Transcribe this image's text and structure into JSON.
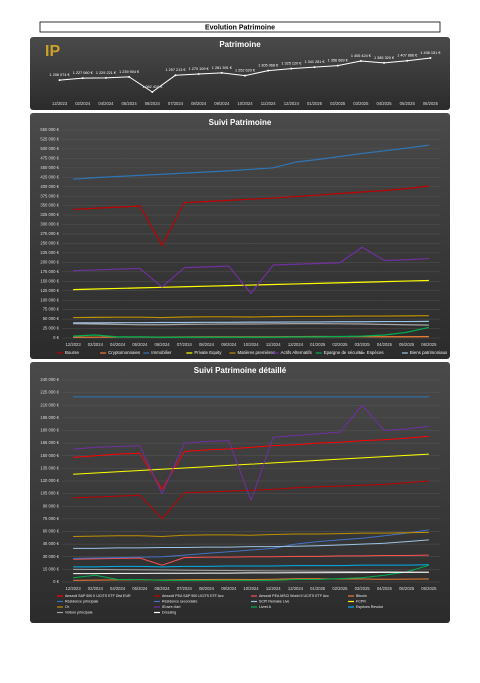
{
  "header": {
    "title": "Evolution Patrimoine",
    "logo": "IP"
  },
  "chart_data": [
    {
      "type": "line",
      "title": "Patrimoine",
      "categories": [
        "12/2023",
        "02/2024",
        "04/2024",
        "05/2024",
        "06/2024",
        "07/2024",
        "08/2024",
        "09/2024",
        "10/2024",
        "11/2024",
        "12/2024",
        "01/2025",
        "02/2025",
        "03/2025",
        "04/2025",
        "05/2025",
        "06/2025"
      ],
      "values": [
        1206074,
        1227060,
        1229221,
        1239904,
        1082410,
        1257213,
        1270109,
        1281391,
        1252620,
        1305068,
        1325120,
        1341281,
        1356689,
        1405424,
        1385320,
        1407866,
        1436151
      ],
      "value_labels": [
        "1 206 074 €",
        "1 227 060 €",
        "1 229 221 €",
        "1 239 904 €",
        "1 082 410 €",
        "1 257 213 €",
        "1 270 109 €",
        "1 281 391 €",
        "1 252 620 €",
        "1 305 068 €",
        "1 325 120 €",
        "1 341 281 €",
        "1 356 689 €",
        "1 405 424 €",
        "1 385 320 €",
        "1 407 866 €",
        "1 436 151 €"
      ],
      "color": "#ffffff"
    },
    {
      "type": "line",
      "title": "Suivi Patrimoine",
      "categories": [
        "12/2023",
        "02/2024",
        "04/2024",
        "05/2024",
        "06/2024",
        "07/2024",
        "08/2024",
        "09/2024",
        "10/2024",
        "11/2024",
        "12/2024",
        "01/2025",
        "02/2025",
        "03/2025",
        "04/2025",
        "05/2025",
        "06/2025"
      ],
      "ylim": [
        0,
        550000
      ],
      "yticks": [
        {
          "value": 0,
          "label": "0 €"
        },
        {
          "value": 25000,
          "label": "25 000 €"
        },
        {
          "value": 50000,
          "label": "50 000 €"
        },
        {
          "value": 75000,
          "label": "75 000 €"
        },
        {
          "value": 100000,
          "label": "100 000 €"
        },
        {
          "value": 125000,
          "label": "125 000 €"
        },
        {
          "value": 150000,
          "label": "150 000 €"
        },
        {
          "value": 175000,
          "label": "175 000 €"
        },
        {
          "value": 200000,
          "label": "200 000 €"
        },
        {
          "value": 225000,
          "label": "225 000 €"
        },
        {
          "value": 250000,
          "label": "250 000 €"
        },
        {
          "value": 275000,
          "label": "275 000 €"
        },
        {
          "value": 300000,
          "label": "300 000 €"
        },
        {
          "value": 325000,
          "label": "325 000 €"
        },
        {
          "value": 350000,
          "label": "350 000 €"
        },
        {
          "value": 375000,
          "label": "375 000 €"
        },
        {
          "value": 400000,
          "label": "400 000 €"
        },
        {
          "value": 425000,
          "label": "425 000 €"
        },
        {
          "value": 450000,
          "label": "450 000 €"
        },
        {
          "value": 475000,
          "label": "475 000 €"
        },
        {
          "value": 500000,
          "label": "500 000 €"
        },
        {
          "value": 525000,
          "label": "525 000 €"
        },
        {
          "value": 550000,
          "label": "550 000 €"
        }
      ],
      "grid": true,
      "series": [
        {
          "name": "Bourse",
          "color": "#c00000",
          "values": [
            340000,
            343000,
            346000,
            349000,
            245000,
            358000,
            361000,
            364000,
            367000,
            370000,
            374000,
            378000,
            382000,
            386000,
            390000,
            395000,
            402000
          ]
        },
        {
          "name": "Cryptomonnaies",
          "color": "#ed7d31",
          "values": [
            2000,
            2200,
            2500,
            2600,
            2400,
            2800,
            3000,
            3100,
            3000,
            3200,
            3800,
            3900,
            3600,
            3500,
            3300,
            3400,
            3600
          ]
        },
        {
          "name": "Immobilier",
          "color": "#2e75b6",
          "values": [
            420000,
            424000,
            427000,
            430000,
            433000,
            436000,
            439000,
            442000,
            446000,
            450000,
            465000,
            472000,
            480000,
            488000,
            495000,
            502000,
            510000
          ]
        },
        {
          "name": "Private Equity",
          "color": "#ffff00",
          "values": [
            128000,
            129500,
            131000,
            132500,
            134000,
            135500,
            137000,
            138500,
            140000,
            141500,
            143000,
            144500,
            146000,
            147500,
            149000,
            150500,
            152000
          ]
        },
        {
          "name": "Matières premières",
          "color": "#bf9000",
          "values": [
            54000,
            54500,
            55000,
            55000,
            54000,
            55500,
            56000,
            56000,
            55500,
            56500,
            57000,
            57000,
            57500,
            58000,
            58000,
            58500,
            59000
          ]
        },
        {
          "name": "Actifs Alternatifs",
          "color": "#7030a0",
          "values": [
            178000,
            180000,
            182000,
            184000,
            135000,
            186000,
            188000,
            190000,
            118000,
            193000,
            195000,
            197000,
            199000,
            240000,
            205000,
            207000,
            210000
          ]
        },
        {
          "name": "Epargne de sécurité",
          "color": "#00b050",
          "values": [
            5000,
            8000,
            3000,
            3000,
            2000,
            2000,
            2000,
            2000,
            2000,
            2000,
            3000,
            3000,
            4000,
            5000,
            8000,
            15000,
            28000
          ]
        },
        {
          "name": "Espèces",
          "color": "#a5a5a5",
          "values": [
            38000,
            37000,
            36000,
            35000,
            35000,
            36000,
            36500,
            37000,
            37000,
            37500,
            38000,
            38000,
            37500,
            37000,
            36000,
            35000,
            34000
          ]
        },
        {
          "name": "Biens patrimoniaux",
          "color": "#9dc3e6",
          "values": [
            40000,
            40000,
            40500,
            40500,
            41000,
            41000,
            41500,
            41500,
            42000,
            42000,
            42500,
            42500,
            43000,
            43000,
            43500,
            43500,
            44000
          ]
        }
      ]
    },
    {
      "type": "line",
      "title": "Suivi Patrimoine détaillé",
      "categories": [
        "12/2023",
        "02/2024",
        "04/2024",
        "05/2024",
        "06/2024",
        "07/2024",
        "08/2024",
        "09/2024",
        "10/2024",
        "11/2024",
        "12/2024",
        "01/2025",
        "02/2025",
        "03/2025",
        "04/2025",
        "05/2025",
        "06/2025"
      ],
      "ylim": [
        0,
        240000
      ],
      "yticks": [
        {
          "value": 0,
          "label": "0 €"
        },
        {
          "value": 15000,
          "label": "15 000 €"
        },
        {
          "value": 30000,
          "label": "30 000 €"
        },
        {
          "value": 45000,
          "label": "45 000 €"
        },
        {
          "value": 60000,
          "label": "60 000 €"
        },
        {
          "value": 75000,
          "label": "75 000 €"
        },
        {
          "value": 90000,
          "label": "90 000 €"
        },
        {
          "value": 105000,
          "label": "105 000 €"
        },
        {
          "value": 120000,
          "label": "120 000 €"
        },
        {
          "value": 135000,
          "label": "135 000 €"
        },
        {
          "value": 150000,
          "label": "150 000 €"
        },
        {
          "value": 165000,
          "label": "165 000 €"
        },
        {
          "value": 180000,
          "label": "180 000 €"
        },
        {
          "value": 195000,
          "label": "195 000 €"
        },
        {
          "value": 210000,
          "label": "210 000 €"
        },
        {
          "value": 225000,
          "label": "225 000 €"
        },
        {
          "value": 240000,
          "label": "240 000 €"
        }
      ],
      "grid": true,
      "series": [
        {
          "name": "Amundi S&P 500 II UCITS ETF Dist EUR",
          "color": "#ff0000",
          "values": [
            148000,
            150000,
            152000,
            153000,
            110000,
            155000,
            157000,
            158000,
            160000,
            162000,
            163000,
            165000,
            166000,
            168000,
            169000,
            171000,
            173000
          ]
        },
        {
          "name": "Amundi PEA S&P 500 UCITS ETF Acc",
          "color": "#c00000",
          "values": [
            100000,
            101000,
            102000,
            103000,
            75000,
            106000,
            107000,
            108000,
            109000,
            110000,
            112000,
            113000,
            114000,
            115000,
            116000,
            118000,
            120000
          ]
        },
        {
          "name": "Amundi PEA MSCI World II UCITS ETF Acc",
          "color": "#ff5050",
          "values": [
            27000,
            27500,
            28000,
            28500,
            20000,
            29000,
            29500,
            29500,
            30000,
            30000,
            30500,
            30500,
            31000,
            31000,
            31500,
            31500,
            32000
          ]
        },
        {
          "name": "Bitcoin",
          "color": "#ed7d31",
          "values": [
            2000,
            2200,
            2500,
            2600,
            2400,
            2800,
            3000,
            3100,
            3000,
            3200,
            3800,
            3900,
            3600,
            3500,
            3300,
            3400,
            3600
          ]
        },
        {
          "name": "Résidence principale",
          "color": "#2e75b6",
          "values": [
            220000,
            220000,
            220000,
            220000,
            220000,
            220000,
            220000,
            220000,
            220000,
            220000,
            220000,
            220000,
            220000,
            220000,
            220000,
            220000,
            220000
          ]
        },
        {
          "name": "Résidence secondaire",
          "color": "#4472c4",
          "values": [
            28000,
            28500,
            29000,
            29500,
            30000,
            32000,
            34000,
            36000,
            38000,
            40000,
            45000,
            48000,
            50000,
            52000,
            55000,
            58000,
            62000
          ]
        },
        {
          "name": "SCPI Remake Live",
          "color": "#9dc3e6",
          "values": [
            40000,
            40000,
            40500,
            40500,
            41000,
            41000,
            41500,
            41500,
            42000,
            42000,
            42500,
            43000,
            44000,
            45000,
            46000,
            48000,
            50000
          ]
        },
        {
          "name": "FCPR",
          "color": "#ffff00",
          "values": [
            128000,
            129500,
            131000,
            132500,
            134000,
            135500,
            137000,
            138500,
            140000,
            141500,
            143000,
            144500,
            146000,
            147500,
            149000,
            150500,
            152000
          ]
        },
        {
          "name": "Or",
          "color": "#bf9000",
          "values": [
            54000,
            54500,
            55000,
            55000,
            54000,
            55500,
            56000,
            56000,
            55500,
            56500,
            57000,
            57000,
            57500,
            58000,
            58000,
            58500,
            59000
          ]
        },
        {
          "name": "Œuvre d'art",
          "color": "#7030a0",
          "values": [
            158000,
            160000,
            161000,
            162000,
            105000,
            165000,
            167000,
            168000,
            97000,
            172000,
            174000,
            176000,
            178000,
            210000,
            180000,
            182000,
            185000
          ]
        },
        {
          "name": "Livret A",
          "color": "#00b050",
          "values": [
            5000,
            8000,
            3000,
            3000,
            2000,
            2000,
            2000,
            2000,
            2000,
            2000,
            3000,
            3000,
            4000,
            5000,
            8000,
            12000,
            20000
          ]
        },
        {
          "name": "Espèces Revolut",
          "color": "#00b0f0",
          "values": [
            18000,
            18000,
            18500,
            18500,
            18000,
            18500,
            18500,
            19000,
            19000,
            19000,
            19500,
            19500,
            19500,
            20000,
            20000,
            20000,
            20500
          ]
        },
        {
          "name": "Voiture principale",
          "color": "#a5a5a5",
          "values": [
            15000,
            14800,
            14600,
            14400,
            14200,
            14000,
            13800,
            13600,
            13400,
            13200,
            13000,
            12800,
            12600,
            12400,
            12200,
            12000,
            11800
          ]
        },
        {
          "name": "Dressing",
          "color": "#ffffff",
          "values": [
            10000,
            10000,
            10200,
            10200,
            10400,
            10400,
            10600,
            10600,
            10800,
            10800,
            11000,
            11000,
            11200,
            11200,
            11400,
            11400,
            11600
          ]
        }
      ]
    }
  ]
}
